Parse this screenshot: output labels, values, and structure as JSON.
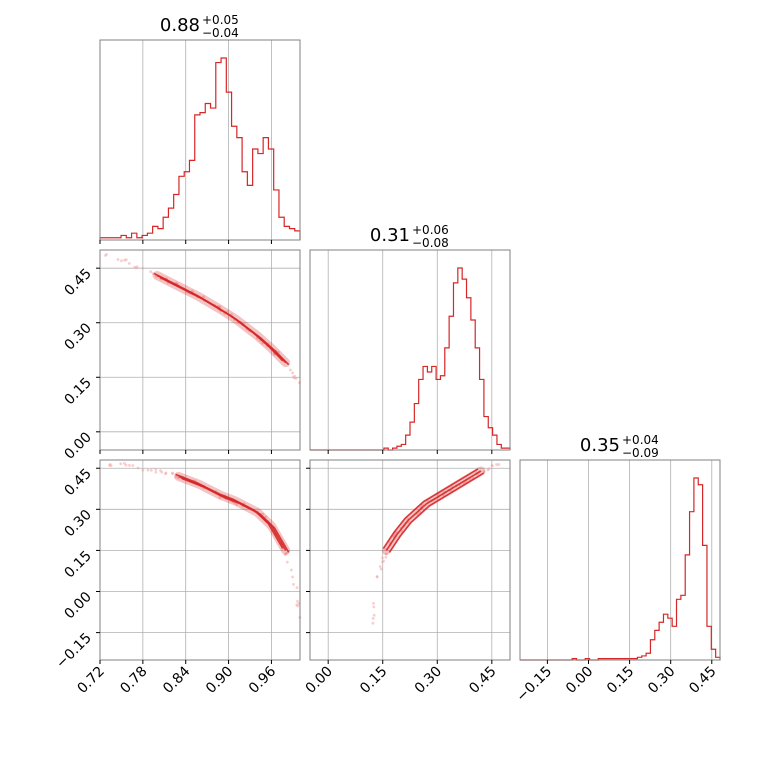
{
  "chart_data": {
    "type": "corner",
    "color": "#d62728",
    "parameters": [
      {
        "range": [
          0.72,
          1.0
        ],
        "ticks": [
          "0.72",
          "0.78",
          "0.84",
          "0.90",
          "0.96"
        ],
        "tick_values": [
          0.72,
          0.78,
          0.84,
          0.9,
          0.96
        ]
      },
      {
        "range": [
          -0.05,
          0.5
        ],
        "ticks": [
          "0.00",
          "0.15",
          "0.30",
          "0.45"
        ],
        "tick_values": [
          0.0,
          0.15,
          0.3,
          0.45
        ]
      },
      {
        "range": [
          -0.25,
          0.48
        ],
        "ticks": [
          "−0.15",
          "0.00",
          "0.15",
          "0.30",
          "0.45"
        ],
        "tick_values": [
          -0.15,
          0.0,
          0.15,
          0.3,
          0.45
        ]
      }
    ],
    "titles": [
      {
        "value": "0.88",
        "plus": "+0.05",
        "minus": "−0.04"
      },
      {
        "value": "0.31",
        "plus": "+0.06",
        "minus": "−0.08"
      },
      {
        "value": "0.35",
        "plus": "+0.04",
        "minus": "−0.09"
      }
    ],
    "histograms": [
      {
        "edges": [
          0.72,
          1.0
        ],
        "counts": [
          1,
          1,
          1,
          1,
          2,
          1,
          3,
          1,
          2,
          3,
          6,
          5,
          10,
          14,
          20,
          28,
          30,
          35,
          55,
          56,
          60,
          58,
          78,
          80,
          65,
          50,
          45,
          30,
          24,
          40,
          38,
          45,
          40,
          22,
          10,
          6,
          5,
          4
        ]
      },
      {
        "edges": [
          -0.05,
          0.5
        ],
        "counts": [
          0,
          0,
          0,
          0,
          0,
          0,
          0,
          0,
          0,
          0,
          0,
          0,
          0,
          0,
          0,
          0,
          0,
          1,
          0,
          1,
          2,
          3,
          8,
          15,
          25,
          38,
          45,
          42,
          45,
          38,
          40,
          55,
          72,
          90,
          98,
          92,
          82,
          70,
          55,
          38,
          18,
          12,
          8,
          3,
          1,
          1
        ]
      },
      {
        "edges": [
          -0.25,
          0.48
        ],
        "counts": [
          0,
          0,
          0,
          0,
          0,
          0,
          0,
          0,
          0,
          0,
          0,
          0,
          1,
          0,
          0,
          1,
          0,
          0,
          1,
          1,
          1,
          1,
          1,
          1,
          1,
          1,
          1,
          2,
          3,
          5,
          15,
          22,
          28,
          34,
          31,
          25,
          45,
          48,
          78,
          110,
          135,
          130,
          85,
          25,
          8,
          2
        ]
      }
    ],
    "scatter_pairs": [
      {
        "row": 1,
        "col": 0,
        "curve": [
          [
            0.72,
            0.495
          ],
          [
            0.76,
            0.465
          ],
          [
            0.8,
            0.43
          ],
          [
            0.83,
            0.4
          ],
          [
            0.86,
            0.37
          ],
          [
            0.89,
            0.335
          ],
          [
            0.91,
            0.31
          ],
          [
            0.94,
            0.265
          ],
          [
            0.96,
            0.23
          ],
          [
            0.98,
            0.19
          ],
          [
            1.0,
            0.13
          ]
        ]
      },
      {
        "row": 2,
        "col": 0,
        "curve": [
          [
            0.72,
            0.47
          ],
          [
            0.76,
            0.46
          ],
          [
            0.8,
            0.44
          ],
          [
            0.83,
            0.42
          ],
          [
            0.86,
            0.39
          ],
          [
            0.89,
            0.35
          ],
          [
            0.91,
            0.33
          ],
          [
            0.94,
            0.29
          ],
          [
            0.96,
            0.24
          ],
          [
            0.98,
            0.15
          ],
          [
            0.995,
            0.0
          ],
          [
            1.0,
            -0.1
          ]
        ]
      },
      {
        "row": 2,
        "col": 1,
        "curve": [
          [
            0.12,
            -0.12
          ],
          [
            0.14,
            0.08
          ],
          [
            0.16,
            0.15
          ],
          [
            0.19,
            0.21
          ],
          [
            0.22,
            0.26
          ],
          [
            0.27,
            0.32
          ],
          [
            0.32,
            0.36
          ],
          [
            0.37,
            0.4
          ],
          [
            0.42,
            0.44
          ],
          [
            0.47,
            0.47
          ]
        ]
      }
    ]
  }
}
